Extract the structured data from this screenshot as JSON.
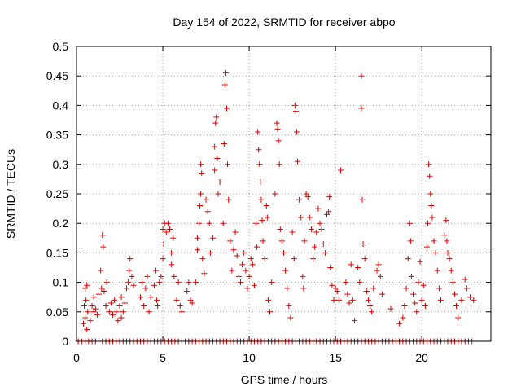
{
  "chart_data": {
    "type": "scatter",
    "title": "Day 154 of 2022, SRMTID for receiver abpo",
    "xlabel": "GPS time / hours",
    "ylabel": "SRMTID / TECUs",
    "xlim": [
      0,
      24
    ],
    "ylim": [
      0,
      0.5
    ],
    "xticks": [
      0,
      5,
      10,
      15,
      20
    ],
    "xtick_labels": [
      "0",
      "5",
      "10",
      "15",
      "20"
    ],
    "yticks": [
      0,
      0.05,
      0.1,
      0.15,
      0.2,
      0.25,
      0.3,
      0.35,
      0.4,
      0.45,
      0.5
    ],
    "ytick_labels": [
      "0",
      "0.05",
      "0.1",
      "0.15",
      "0.2",
      "0.25",
      "0.3",
      "0.35",
      "0.4",
      "0.45",
      "0.5"
    ],
    "grid": true,
    "marker": "+",
    "series_color": "#e00000",
    "series": [
      {
        "name": "SRMTID",
        "points": [
          [
            0.4,
            0.03
          ],
          [
            0.45,
            0.06
          ],
          [
            0.5,
            0.09
          ],
          [
            0.5,
            0.04
          ],
          [
            0.55,
            0.07
          ],
          [
            0.6,
            0.02
          ],
          [
            0.6,
            0.095
          ],
          [
            0.65,
            0.05
          ],
          [
            0.8,
            0.035
          ],
          [
            0.9,
            0.06
          ],
          [
            1.0,
            0.05
          ],
          [
            1.0,
            0.075
          ],
          [
            1.1,
            0.055
          ],
          [
            1.2,
            0.045
          ],
          [
            1.3,
            0.08
          ],
          [
            1.4,
            0.12
          ],
          [
            1.45,
            0.09
          ],
          [
            1.5,
            0.18
          ],
          [
            1.55,
            0.16
          ],
          [
            1.6,
            0.085
          ],
          [
            1.7,
            0.06
          ],
          [
            1.75,
            0.1
          ],
          [
            1.9,
            0.05
          ],
          [
            2.0,
            0.065
          ],
          [
            2.1,
            0.045
          ],
          [
            2.2,
            0.07
          ],
          [
            2.3,
            0.05
          ],
          [
            2.4,
            0.035
          ],
          [
            2.5,
            0.06
          ],
          [
            2.6,
            0.04
          ],
          [
            2.6,
            0.075
          ],
          [
            2.7,
            0.05
          ],
          [
            2.8,
            0.065
          ],
          [
            2.9,
            0.09
          ],
          [
            3.0,
            0.1
          ],
          [
            3.05,
            0.12
          ],
          [
            3.1,
            0.14
          ],
          [
            3.2,
            0.11
          ],
          [
            3.3,
            0.095
          ],
          [
            3.7,
            0.075
          ],
          [
            3.8,
            0.1
          ],
          [
            3.9,
            0.06
          ],
          [
            4.0,
            0.09
          ],
          [
            4.1,
            0.11
          ],
          [
            4.2,
            0.05
          ],
          [
            4.3,
            0.075
          ],
          [
            4.5,
            0.095
          ],
          [
            4.6,
            0.12
          ],
          [
            4.65,
            0.07
          ],
          [
            4.7,
            0.06
          ],
          [
            4.8,
            0.1
          ],
          [
            4.9,
            0.11
          ],
          [
            5.0,
            0.14
          ],
          [
            5.0,
            0.19
          ],
          [
            5.05,
            0.165
          ],
          [
            5.1,
            0.2
          ],
          [
            5.2,
            0.185
          ],
          [
            5.3,
            0.2
          ],
          [
            5.4,
            0.19
          ],
          [
            5.5,
            0.15
          ],
          [
            5.5,
            0.13
          ],
          [
            5.6,
            0.175
          ],
          [
            5.65,
            0.11
          ],
          [
            5.8,
            0.07
          ],
          [
            5.9,
            0.1
          ],
          [
            6.0,
            0.06
          ],
          [
            6.1,
            0.05
          ],
          [
            6.4,
            0.085
          ],
          [
            6.5,
            0.1
          ],
          [
            6.6,
            0.07
          ],
          [
            6.7,
            0.065
          ],
          [
            6.9,
            0.1
          ],
          [
            7.0,
            0.155
          ],
          [
            7.0,
            0.175
          ],
          [
            7.1,
            0.2
          ],
          [
            7.15,
            0.23
          ],
          [
            7.2,
            0.25
          ],
          [
            7.2,
            0.3
          ],
          [
            7.25,
            0.285
          ],
          [
            7.3,
            0.14
          ],
          [
            7.4,
            0.115
          ],
          [
            7.5,
            0.24
          ],
          [
            7.6,
            0.22
          ],
          [
            7.7,
            0.2
          ],
          [
            7.75,
            0.15
          ],
          [
            7.9,
            0.175
          ],
          [
            8.0,
            0.29
          ],
          [
            8.0,
            0.33
          ],
          [
            8.05,
            0.37
          ],
          [
            8.1,
            0.38
          ],
          [
            8.15,
            0.31
          ],
          [
            8.2,
            0.25
          ],
          [
            8.3,
            0.27
          ],
          [
            8.5,
            0.2
          ],
          [
            8.55,
            0.335
          ],
          [
            8.6,
            0.435
          ],
          [
            8.65,
            0.455
          ],
          [
            8.7,
            0.395
          ],
          [
            8.75,
            0.3
          ],
          [
            8.8,
            0.24
          ],
          [
            8.9,
            0.17
          ],
          [
            9.0,
            0.12
          ],
          [
            9.1,
            0.155
          ],
          [
            9.2,
            0.185
          ],
          [
            9.3,
            0.145
          ],
          [
            9.4,
            0.11
          ],
          [
            9.5,
            0.1
          ],
          [
            9.6,
            0.13
          ],
          [
            9.7,
            0.15
          ],
          [
            9.8,
            0.12
          ],
          [
            9.9,
            0.09
          ],
          [
            10.0,
            0.11
          ],
          [
            10.1,
            0.14
          ],
          [
            10.2,
            0.13
          ],
          [
            10.3,
            0.095
          ],
          [
            10.4,
            0.2
          ],
          [
            10.45,
            0.16
          ],
          [
            10.5,
            0.355
          ],
          [
            10.55,
            0.325
          ],
          [
            10.6,
            0.3
          ],
          [
            10.65,
            0.27
          ],
          [
            10.7,
            0.24
          ],
          [
            10.75,
            0.205
          ],
          [
            10.8,
            0.17
          ],
          [
            10.9,
            0.14
          ],
          [
            11.0,
            0.23
          ],
          [
            11.05,
            0.21
          ],
          [
            11.1,
            0.07
          ],
          [
            11.2,
            0.05
          ],
          [
            11.3,
            0.1
          ],
          [
            11.5,
            0.25
          ],
          [
            11.6,
            0.37
          ],
          [
            11.65,
            0.36
          ],
          [
            11.7,
            0.34
          ],
          [
            11.75,
            0.3
          ],
          [
            11.8,
            0.19
          ],
          [
            11.9,
            0.17
          ],
          [
            12.0,
            0.15
          ],
          [
            12.1,
            0.12
          ],
          [
            12.2,
            0.09
          ],
          [
            12.3,
            0.06
          ],
          [
            12.4,
            0.04
          ],
          [
            12.5,
            0.185
          ],
          [
            12.6,
            0.14
          ],
          [
            12.65,
            0.4
          ],
          [
            12.7,
            0.39
          ],
          [
            12.75,
            0.355
          ],
          [
            12.8,
            0.305
          ],
          [
            12.9,
            0.24
          ],
          [
            13.0,
            0.21
          ],
          [
            13.1,
            0.11
          ],
          [
            13.15,
            0.09
          ],
          [
            13.2,
            0.17
          ],
          [
            13.3,
            0.25
          ],
          [
            13.4,
            0.245
          ],
          [
            13.5,
            0.21
          ],
          [
            13.6,
            0.19
          ],
          [
            13.7,
            0.14
          ],
          [
            13.8,
            0.16
          ],
          [
            13.9,
            0.185
          ],
          [
            14.0,
            0.225
          ],
          [
            14.1,
            0.2
          ],
          [
            14.2,
            0.19
          ],
          [
            14.3,
            0.165
          ],
          [
            14.4,
            0.15
          ],
          [
            14.5,
            0.215
          ],
          [
            14.6,
            0.22
          ],
          [
            14.65,
            0.245
          ],
          [
            14.7,
            0.125
          ],
          [
            14.8,
            0.095
          ],
          [
            14.9,
            0.07
          ],
          [
            15.0,
            0.09
          ],
          [
            15.1,
            0.085
          ],
          [
            15.2,
            0.07
          ],
          [
            15.3,
            0.29
          ],
          [
            15.6,
            0.1
          ],
          [
            15.7,
            0.08
          ],
          [
            15.8,
            0.065
          ],
          [
            15.9,
            0.13
          ],
          [
            16.0,
            0.07
          ],
          [
            16.1,
            0.035
          ],
          [
            16.3,
            0.125
          ],
          [
            16.4,
            0.1
          ],
          [
            16.5,
            0.45
          ],
          [
            16.5,
            0.395
          ],
          [
            16.55,
            0.24
          ],
          [
            16.6,
            0.165
          ],
          [
            16.7,
            0.14
          ],
          [
            16.8,
            0.085
          ],
          [
            16.9,
            0.07
          ],
          [
            17.0,
            0.06
          ],
          [
            17.1,
            0.05
          ],
          [
            17.2,
            0.09
          ],
          [
            17.4,
            0.12
          ],
          [
            17.5,
            0.13
          ],
          [
            17.6,
            0.11
          ],
          [
            17.7,
            0.08
          ],
          [
            18.2,
            0.055
          ],
          [
            18.7,
            0.03
          ],
          [
            18.9,
            0.04
          ],
          [
            19.0,
            0.06
          ],
          [
            19.1,
            0.09
          ],
          [
            19.2,
            0.14
          ],
          [
            19.3,
            0.2
          ],
          [
            19.35,
            0.17
          ],
          [
            19.4,
            0.11
          ],
          [
            19.5,
            0.08
          ],
          [
            19.6,
            0.065
          ],
          [
            19.7,
            0.05
          ],
          [
            19.8,
            0.1
          ],
          [
            19.9,
            0.135
          ],
          [
            20.0,
            0.07
          ],
          [
            20.1,
            0.095
          ],
          [
            20.2,
            0.06
          ],
          [
            20.3,
            0.16
          ],
          [
            20.35,
            0.2
          ],
          [
            20.4,
            0.3
          ],
          [
            20.45,
            0.28
          ],
          [
            20.5,
            0.25
          ],
          [
            20.55,
            0.23
          ],
          [
            20.6,
            0.21
          ],
          [
            20.7,
            0.17
          ],
          [
            20.8,
            0.15
          ],
          [
            20.9,
            0.12
          ],
          [
            21.0,
            0.09
          ],
          [
            21.1,
            0.07
          ],
          [
            21.3,
            0.18
          ],
          [
            21.4,
            0.205
          ],
          [
            21.45,
            0.17
          ],
          [
            21.5,
            0.15
          ],
          [
            21.6,
            0.14
          ],
          [
            21.7,
            0.12
          ],
          [
            21.8,
            0.1
          ],
          [
            21.9,
            0.08
          ],
          [
            22.0,
            0.06
          ],
          [
            22.1,
            0.04
          ],
          [
            22.3,
            0.07
          ],
          [
            22.5,
            0.105
          ],
          [
            22.6,
            0.09
          ],
          [
            22.8,
            0.075
          ],
          [
            23.0,
            0.07
          ]
        ],
        "zero_x": [
          0.1,
          0.3,
          0.5,
          0.7,
          0.9,
          1.1,
          1.3,
          1.5,
          1.7,
          1.9,
          2.1,
          2.3,
          2.5,
          2.7,
          2.9,
          3.1,
          3.3,
          3.5,
          3.7,
          3.9,
          4.1,
          4.3,
          4.5,
          4.7,
          4.9,
          5.1,
          5.3,
          5.5,
          5.7,
          5.9,
          6.1,
          6.3,
          6.5,
          6.7,
          6.9,
          7.1,
          7.3,
          7.5,
          7.7,
          7.9,
          8.1,
          8.3,
          8.5,
          8.7,
          8.9,
          9.1,
          9.3,
          9.5,
          9.7,
          9.9,
          10.1,
          10.3,
          10.5,
          10.7,
          10.9,
          11.1,
          11.3,
          11.5,
          11.7,
          11.9,
          12.1,
          12.3,
          12.5,
          12.7,
          12.9,
          13.1,
          13.3,
          13.5,
          13.7,
          13.9,
          14.1,
          14.3,
          14.5,
          14.7,
          14.9,
          15.1,
          15.3,
          15.5,
          15.7,
          15.9,
          16.1,
          16.3,
          16.5,
          16.7,
          16.9,
          17.1,
          17.3,
          17.5,
          17.7,
          17.9,
          18.1,
          18.3,
          18.5,
          18.7,
          18.9,
          19.1,
          19.3,
          19.5,
          19.7,
          19.9,
          20.1,
          20.3,
          20.5,
          20.7,
          20.9,
          21.1,
          21.3,
          21.5,
          21.7,
          21.9,
          22.1,
          22.3,
          22.5,
          22.7,
          22.9
        ]
      }
    ]
  }
}
